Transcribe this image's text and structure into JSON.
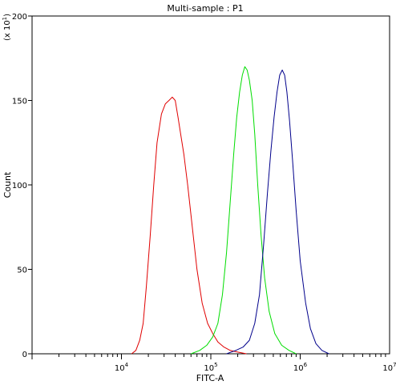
{
  "chart_data": {
    "type": "line",
    "title": "Multi-sample : P1",
    "xlabel": "FITC-A",
    "ylabel": "Count",
    "y_multiplier": "(x 10",
    "y_multiplier_exp": "1",
    "y_multiplier_close": ")",
    "x_scale": "log",
    "xlim": [
      1000,
      10000000
    ],
    "ylim": [
      0,
      200
    ],
    "y_ticks": [
      0,
      50,
      100,
      150,
      200
    ],
    "y_tick_labels": [
      "0",
      "50",
      "100",
      "150",
      "200"
    ],
    "x_major_ticks": [
      10000,
      100000,
      1000000,
      10000000
    ],
    "x_tick_labels": [
      {
        "base": "10",
        "exp": "4"
      },
      {
        "base": "10",
        "exp": "5"
      },
      {
        "base": "10",
        "exp": "6"
      },
      {
        "base": "10",
        "exp": "7"
      }
    ],
    "grid": false,
    "series": [
      {
        "color": "#e00000",
        "points": [
          [
            13000,
            0
          ],
          [
            14500,
            2
          ],
          [
            16000,
            8
          ],
          [
            17500,
            18
          ],
          [
            19000,
            40
          ],
          [
            21000,
            70
          ],
          [
            23000,
            100
          ],
          [
            25000,
            125
          ],
          [
            28000,
            142
          ],
          [
            31000,
            148
          ],
          [
            34000,
            150
          ],
          [
            37000,
            152
          ],
          [
            40000,
            150
          ],
          [
            43000,
            140
          ],
          [
            46000,
            130
          ],
          [
            50000,
            118
          ],
          [
            55000,
            100
          ],
          [
            62000,
            75
          ],
          [
            70000,
            50
          ],
          [
            80000,
            30
          ],
          [
            92000,
            18
          ],
          [
            105000,
            12
          ],
          [
            120000,
            7
          ],
          [
            140000,
            4
          ],
          [
            165000,
            2
          ],
          [
            200000,
            1
          ],
          [
            250000,
            0
          ]
        ]
      },
      {
        "color": "#00dd00",
        "points": [
          [
            60000,
            0
          ],
          [
            75000,
            2
          ],
          [
            90000,
            5
          ],
          [
            105000,
            10
          ],
          [
            120000,
            18
          ],
          [
            135000,
            35
          ],
          [
            150000,
            60
          ],
          [
            165000,
            90
          ],
          [
            180000,
            118
          ],
          [
            195000,
            140
          ],
          [
            210000,
            155
          ],
          [
            225000,
            165
          ],
          [
            240000,
            170
          ],
          [
            255000,
            168
          ],
          [
            270000,
            162
          ],
          [
            290000,
            150
          ],
          [
            310000,
            130
          ],
          [
            335000,
            100
          ],
          [
            365000,
            70
          ],
          [
            400000,
            45
          ],
          [
            450000,
            25
          ],
          [
            520000,
            12
          ],
          [
            620000,
            5
          ],
          [
            750000,
            2
          ],
          [
            900000,
            0
          ]
        ]
      },
      {
        "color": "#00008b",
        "points": [
          [
            150000,
            0
          ],
          [
            190000,
            2
          ],
          [
            230000,
            4
          ],
          [
            270000,
            8
          ],
          [
            310000,
            18
          ],
          [
            350000,
            35
          ],
          [
            390000,
            65
          ],
          [
            430000,
            95
          ],
          [
            470000,
            120
          ],
          [
            510000,
            140
          ],
          [
            550000,
            155
          ],
          [
            590000,
            165
          ],
          [
            630000,
            168
          ],
          [
            670000,
            165
          ],
          [
            710000,
            155
          ],
          [
            760000,
            138
          ],
          [
            820000,
            115
          ],
          [
            900000,
            85
          ],
          [
            1000000,
            55
          ],
          [
            1150000,
            30
          ],
          [
            1300000,
            15
          ],
          [
            1500000,
            6
          ],
          [
            1750000,
            2
          ],
          [
            2100000,
            0
          ]
        ]
      }
    ]
  }
}
